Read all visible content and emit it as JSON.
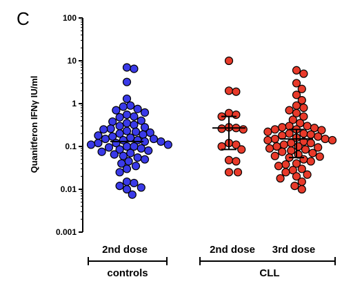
{
  "chart_data": {
    "type": "scatter",
    "panel_label": "C",
    "ylabel": "Quanitferon IFNγ IU/ml",
    "yscale": "log",
    "ylim": [
      0.001,
      100
    ],
    "yticks": [
      "0.001",
      "0.01",
      "0.1",
      "1",
      "10",
      "100"
    ],
    "categories": [
      "2nd dose",
      "2nd dose",
      "3rd dose"
    ],
    "groups": [
      "controls",
      "CLL"
    ],
    "series": [
      {
        "category": "2nd dose",
        "group": "controls",
        "color": "#3a3ae8",
        "median": 0.13,
        "values": [
          7,
          6.5,
          3.2,
          1.3,
          0.9,
          0.85,
          0.75,
          0.7,
          0.62,
          0.55,
          0.5,
          0.48,
          0.4,
          0.38,
          0.35,
          0.32,
          0.3,
          0.28,
          0.26,
          0.25,
          0.23,
          0.22,
          0.21,
          0.2,
          0.19,
          0.18,
          0.17,
          0.16,
          0.15,
          0.15,
          0.14,
          0.14,
          0.13,
          0.13,
          0.12,
          0.12,
          0.11,
          0.11,
          0.1,
          0.1,
          0.095,
          0.09,
          0.085,
          0.08,
          0.075,
          0.07,
          0.065,
          0.06,
          0.055,
          0.05,
          0.045,
          0.04,
          0.035,
          0.03,
          0.025,
          0.015,
          0.014,
          0.012,
          0.011,
          0.01,
          0.0075
        ]
      },
      {
        "category": "2nd dose",
        "group": "CLL",
        "color": "#e83a2a",
        "median": 0.27,
        "q1": 0.085,
        "q3": 0.5,
        "values": [
          10,
          2,
          1.9,
          0.6,
          0.55,
          0.5,
          0.28,
          0.27,
          0.26,
          0.25,
          0.12,
          0.11,
          0.1,
          0.085,
          0.048,
          0.045,
          0.025,
          0.025
        ]
      },
      {
        "category": "3rd dose",
        "group": "CLL",
        "color": "#e83a2a",
        "median": 0.15,
        "q1": 0.055,
        "q3": 0.25,
        "values": [
          6,
          5,
          3,
          2.2,
          1.6,
          1.2,
          0.9,
          0.8,
          0.7,
          0.6,
          0.5,
          0.42,
          0.35,
          0.3,
          0.3,
          0.28,
          0.27,
          0.25,
          0.25,
          0.24,
          0.22,
          0.2,
          0.2,
          0.19,
          0.18,
          0.17,
          0.16,
          0.15,
          0.15,
          0.14,
          0.14,
          0.13,
          0.12,
          0.12,
          0.11,
          0.1,
          0.1,
          0.095,
          0.09,
          0.085,
          0.08,
          0.075,
          0.07,
          0.065,
          0.06,
          0.058,
          0.055,
          0.05,
          0.045,
          0.04,
          0.038,
          0.035,
          0.03,
          0.028,
          0.025,
          0.022,
          0.02,
          0.018,
          0.015,
          0.012,
          0.01
        ]
      }
    ]
  }
}
